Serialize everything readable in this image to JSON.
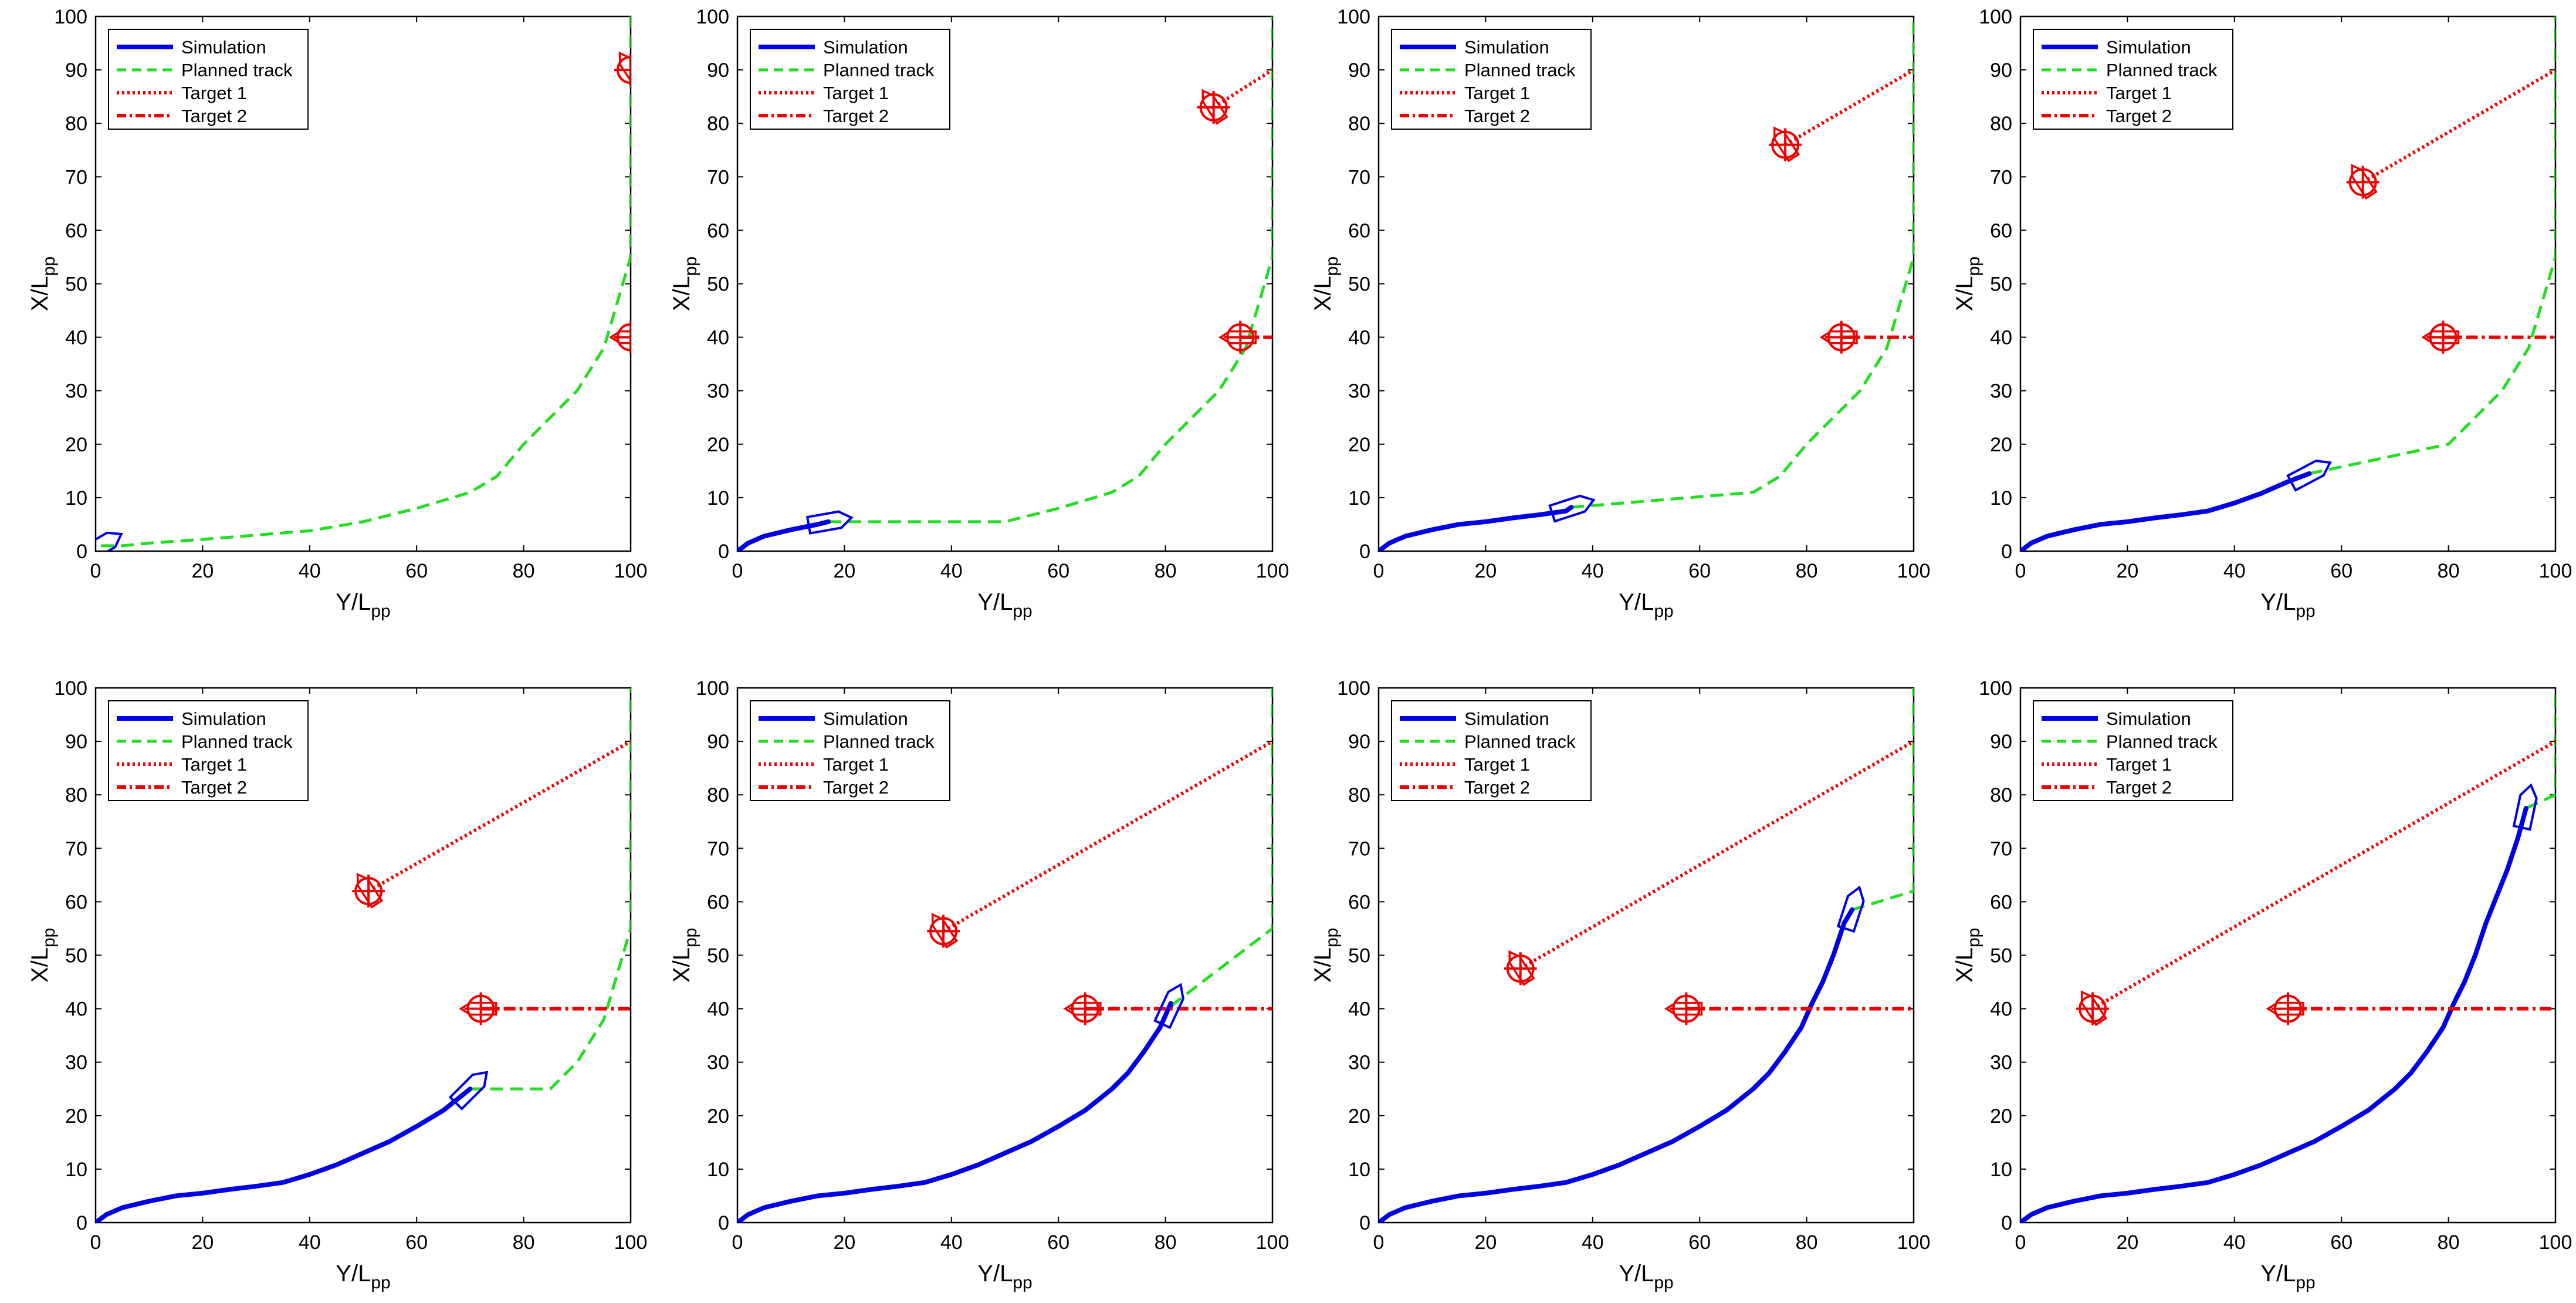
{
  "chart_data": {
    "type": "line",
    "layout": "2x4 grid of trajectory snapshots",
    "xlabel_main": "Y/L",
    "xlabel_sub": "pp",
    "ylabel_main": "X/L",
    "ylabel_sub": "pp",
    "xlim": [
      0,
      100
    ],
    "ylim": [
      0,
      100
    ],
    "xticks": [
      0,
      20,
      40,
      60,
      80,
      100
    ],
    "yticks": [
      0,
      10,
      20,
      30,
      40,
      50,
      60,
      70,
      80,
      90,
      100
    ],
    "legend": {
      "placement": "top-left",
      "entries": [
        "Simulation",
        "Planned track",
        "Target 1",
        "Target 2"
      ]
    },
    "colors": {
      "simulation": "#0000e6",
      "planned": "#22dd22",
      "target": "#ee0000",
      "axis": "#000000"
    },
    "simulation_path": [
      [
        0,
        0
      ],
      [
        2,
        1.5
      ],
      [
        5,
        2.8
      ],
      [
        10,
        4
      ],
      [
        15,
        5
      ],
      [
        20,
        5.5
      ],
      [
        25,
        6.2
      ],
      [
        30,
        6.8
      ],
      [
        35,
        7.5
      ],
      [
        40,
        9
      ],
      [
        45,
        10.8
      ],
      [
        50,
        13
      ],
      [
        55,
        15.2
      ],
      [
        60,
        18
      ],
      [
        65,
        21
      ],
      [
        70,
        25
      ],
      [
        73,
        28
      ],
      [
        76,
        32
      ],
      [
        79,
        36.5
      ],
      [
        81,
        41
      ],
      [
        83,
        45
      ],
      [
        85,
        50
      ],
      [
        87,
        56
      ],
      [
        89,
        61
      ],
      [
        91,
        66
      ],
      [
        93,
        72
      ],
      [
        95,
        79
      ]
    ],
    "planned_track": [
      [
        0,
        0
      ],
      [
        5,
        1
      ],
      [
        10,
        1.5
      ],
      [
        20,
        2.2
      ],
      [
        30,
        3
      ],
      [
        40,
        3.8
      ],
      [
        50,
        5.5
      ],
      [
        60,
        8
      ],
      [
        70,
        11
      ],
      [
        75,
        14
      ],
      [
        80,
        20
      ],
      [
        85,
        25
      ],
      [
        90,
        30
      ],
      [
        95,
        38
      ],
      [
        100,
        55
      ],
      [
        100,
        62
      ],
      [
        100,
        70
      ],
      [
        100,
        80
      ],
      [
        100,
        85
      ],
      [
        100,
        92
      ],
      [
        100,
        100
      ]
    ],
    "target1_track": [
      [
        100,
        90
      ],
      [
        13.5,
        40
      ]
    ],
    "target2_track": [
      [
        100,
        40
      ],
      [
        50,
        40
      ]
    ],
    "snapshots": [
      {
        "panel": 1,
        "own": [
          1,
          1
        ],
        "own_heading": 60,
        "sim_until": 0,
        "target1": [
          100,
          90
        ],
        "target2": [
          100,
          40
        ]
      },
      {
        "panel": 2,
        "own": [
          17,
          5.5
        ],
        "own_heading": 80,
        "sim_until": 17,
        "target1": [
          89,
          83
        ],
        "target2": [
          94,
          40
        ]
      },
      {
        "panel": 3,
        "own": [
          36,
          8.2
        ],
        "own_heading": 72,
        "sim_until": 36,
        "target1": [
          76,
          76
        ],
        "target2": [
          86.5,
          40
        ]
      },
      {
        "panel": 4,
        "own": [
          54,
          14.5
        ],
        "own_heading": 62,
        "sim_until": 54,
        "target1": [
          64,
          69
        ],
        "target2": [
          79,
          40
        ]
      },
      {
        "panel": 5,
        "own": [
          70,
          25
        ],
        "own_heading": 45,
        "sim_until": 70,
        "target1": [
          51,
          62
        ],
        "target2": [
          72,
          40
        ]
      },
      {
        "panel": 6,
        "own": [
          81,
          40.5
        ],
        "own_heading": 25,
        "sim_until": 81,
        "target1": [
          38.5,
          54.5
        ],
        "target2": [
          65,
          40
        ]
      },
      {
        "panel": 7,
        "own": [
          88.5,
          58.5
        ],
        "own_heading": 18,
        "sim_until": 88.5,
        "target1": [
          26.5,
          47.5
        ],
        "target2": [
          57.5,
          40
        ]
      },
      {
        "panel": 8,
        "own": [
          94.5,
          77.5
        ],
        "own_heading": 12,
        "sim_until": 94.5,
        "target1": [
          13.5,
          40
        ],
        "target2": [
          50,
          40
        ]
      }
    ]
  }
}
